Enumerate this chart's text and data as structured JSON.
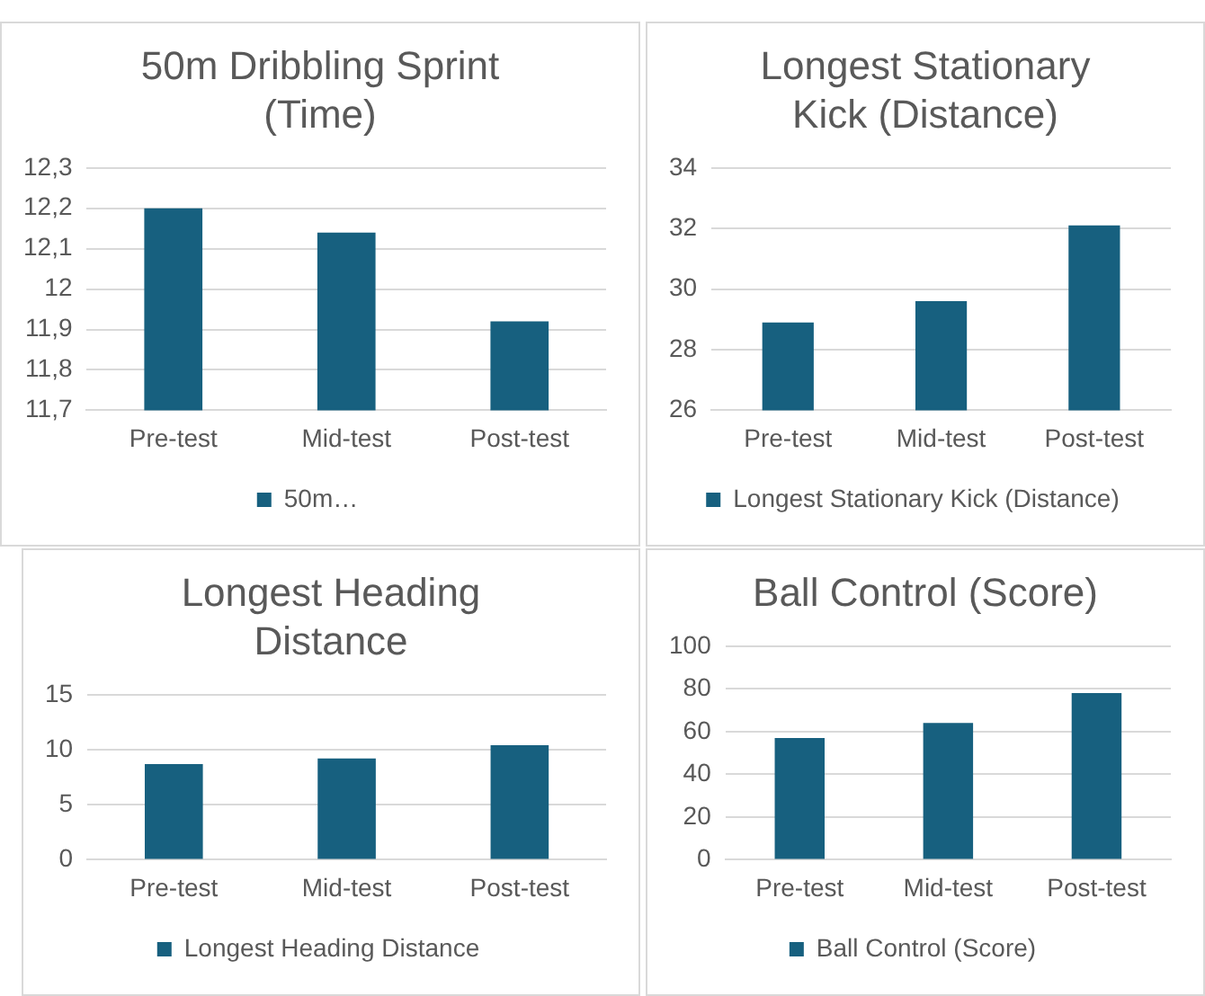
{
  "chart_data": [
    {
      "type": "bar",
      "title": "50m Dribbling Sprint (Time)",
      "categories": [
        "Pre-test",
        "Mid-test",
        "Post-test"
      ],
      "series": [
        {
          "name": "50m…",
          "color": "#17607f",
          "values": [
            12.2,
            12.14,
            11.92
          ]
        }
      ],
      "ylim": [
        11.7,
        12.3
      ],
      "yticks": [
        {
          "value": 11.7,
          "label": "11,7"
        },
        {
          "value": 11.8,
          "label": "11,8"
        },
        {
          "value": 11.9,
          "label": "11,9"
        },
        12,
        {
          "value": 12.1,
          "label": "12,1"
        },
        {
          "value": 12.2,
          "label": "12,2"
        },
        {
          "value": 12.3,
          "label": "12,3"
        }
      ],
      "grid": "y",
      "legend": "bottom"
    },
    {
      "type": "bar",
      "title": "Longest Stationary Kick (Distance)",
      "categories": [
        "Pre-test",
        "Mid-test",
        "Post-test"
      ],
      "series": [
        {
          "name": "Longest Stationary Kick (Distance)",
          "color": "#17607f",
          "values": [
            28.9,
            29.6,
            32.1
          ]
        }
      ],
      "ylim": [
        26,
        34
      ],
      "yticks": [
        26,
        28,
        30,
        32,
        34
      ],
      "grid": "y",
      "legend": "bottom"
    },
    {
      "type": "bar",
      "title": "Longest Heading Distance",
      "categories": [
        "Pre-test",
        "Mid-test",
        "Post-test"
      ],
      "series": [
        {
          "name": "Longest Heading Distance",
          "color": "#17607f",
          "values": [
            8.7,
            9.2,
            10.4
          ]
        }
      ],
      "ylim": [
        0,
        15
      ],
      "yticks": [
        0,
        5,
        10,
        15
      ],
      "grid": "y",
      "legend": "bottom"
    },
    {
      "type": "bar",
      "title": "Ball Control (Score)",
      "categories": [
        "Pre-test",
        "Mid-test",
        "Post-test"
      ],
      "series": [
        {
          "name": "Ball Control (Score)",
          "color": "#17607f",
          "values": [
            57,
            64,
            78
          ]
        }
      ],
      "ylim": [
        0,
        100
      ],
      "yticks": [
        0,
        20,
        40,
        60,
        80,
        100
      ],
      "grid": "y",
      "legend": "bottom"
    }
  ]
}
